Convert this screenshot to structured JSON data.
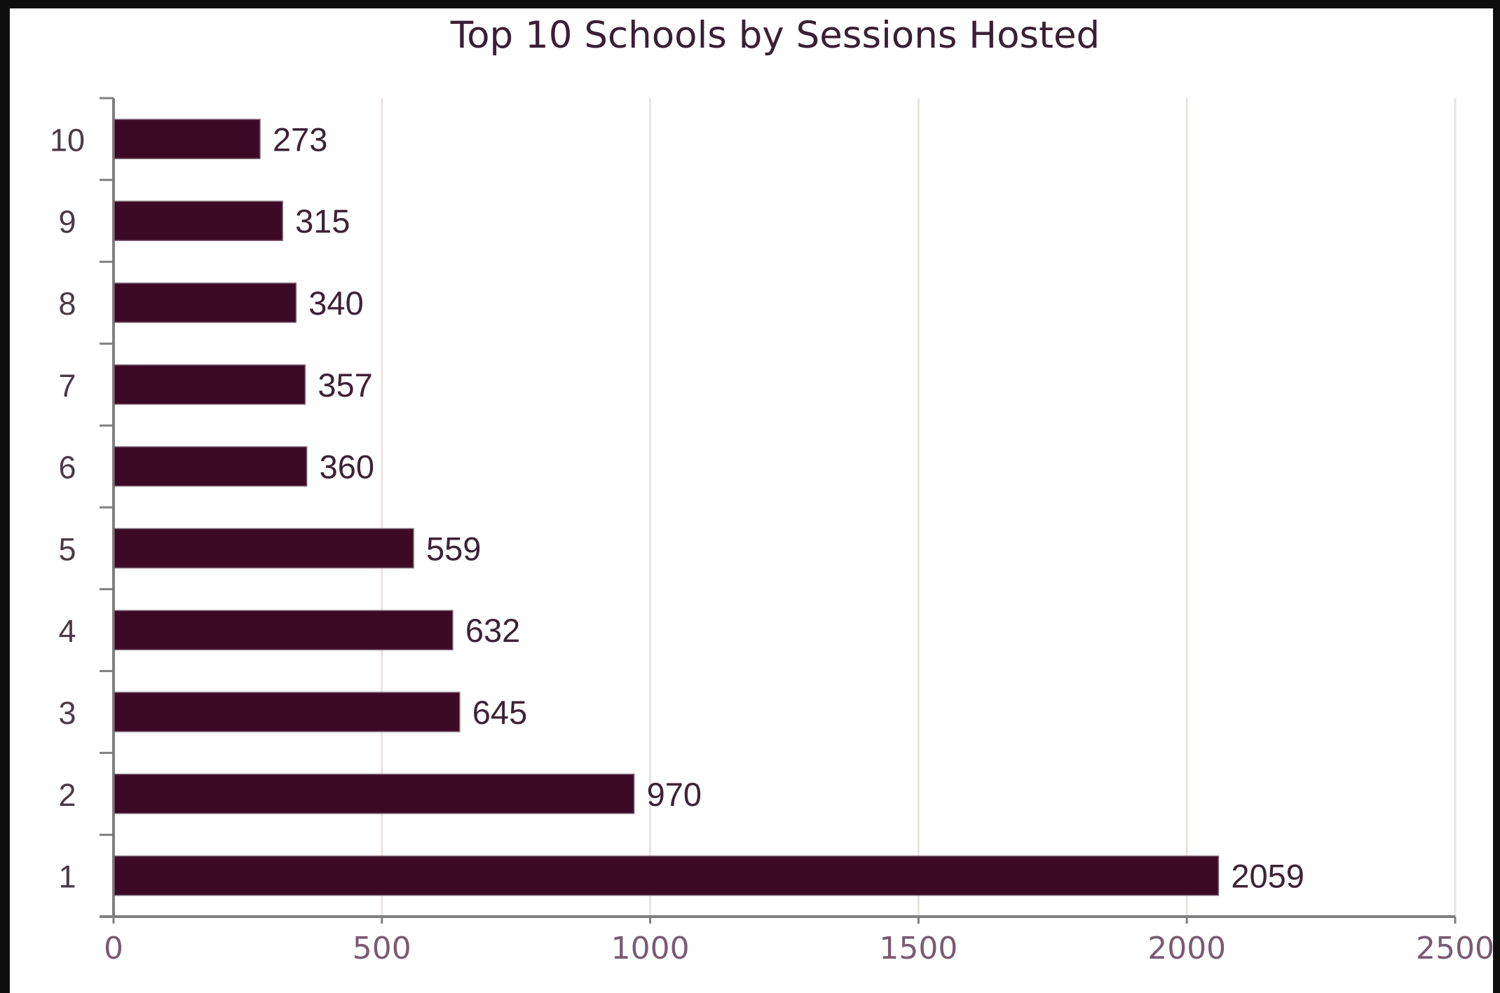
{
  "chart_data": {
    "type": "bar",
    "orientation": "horizontal",
    "title": "Top 10 Schools by Sessions Hosted",
    "xlabel": "",
    "ylabel": "",
    "categories": [
      "1",
      "2",
      "3",
      "4",
      "5",
      "6",
      "7",
      "8",
      "9",
      "10"
    ],
    "values": [
      2059,
      970,
      645,
      632,
      559,
      360,
      357,
      340,
      315,
      273
    ],
    "xlim": [
      0,
      2500
    ],
    "x_ticks": [
      "0",
      "500",
      "1000",
      "1500",
      "2000",
      "2500"
    ],
    "grid": "vertical",
    "legend": "none",
    "bar_color": "#3d0a26",
    "colors": {
      "bar": "#3d0a26",
      "grid": "#e9e3df",
      "axis": "#7f7f7f",
      "frame": "#0e0e0e",
      "page_background": "#f3efe4"
    }
  }
}
